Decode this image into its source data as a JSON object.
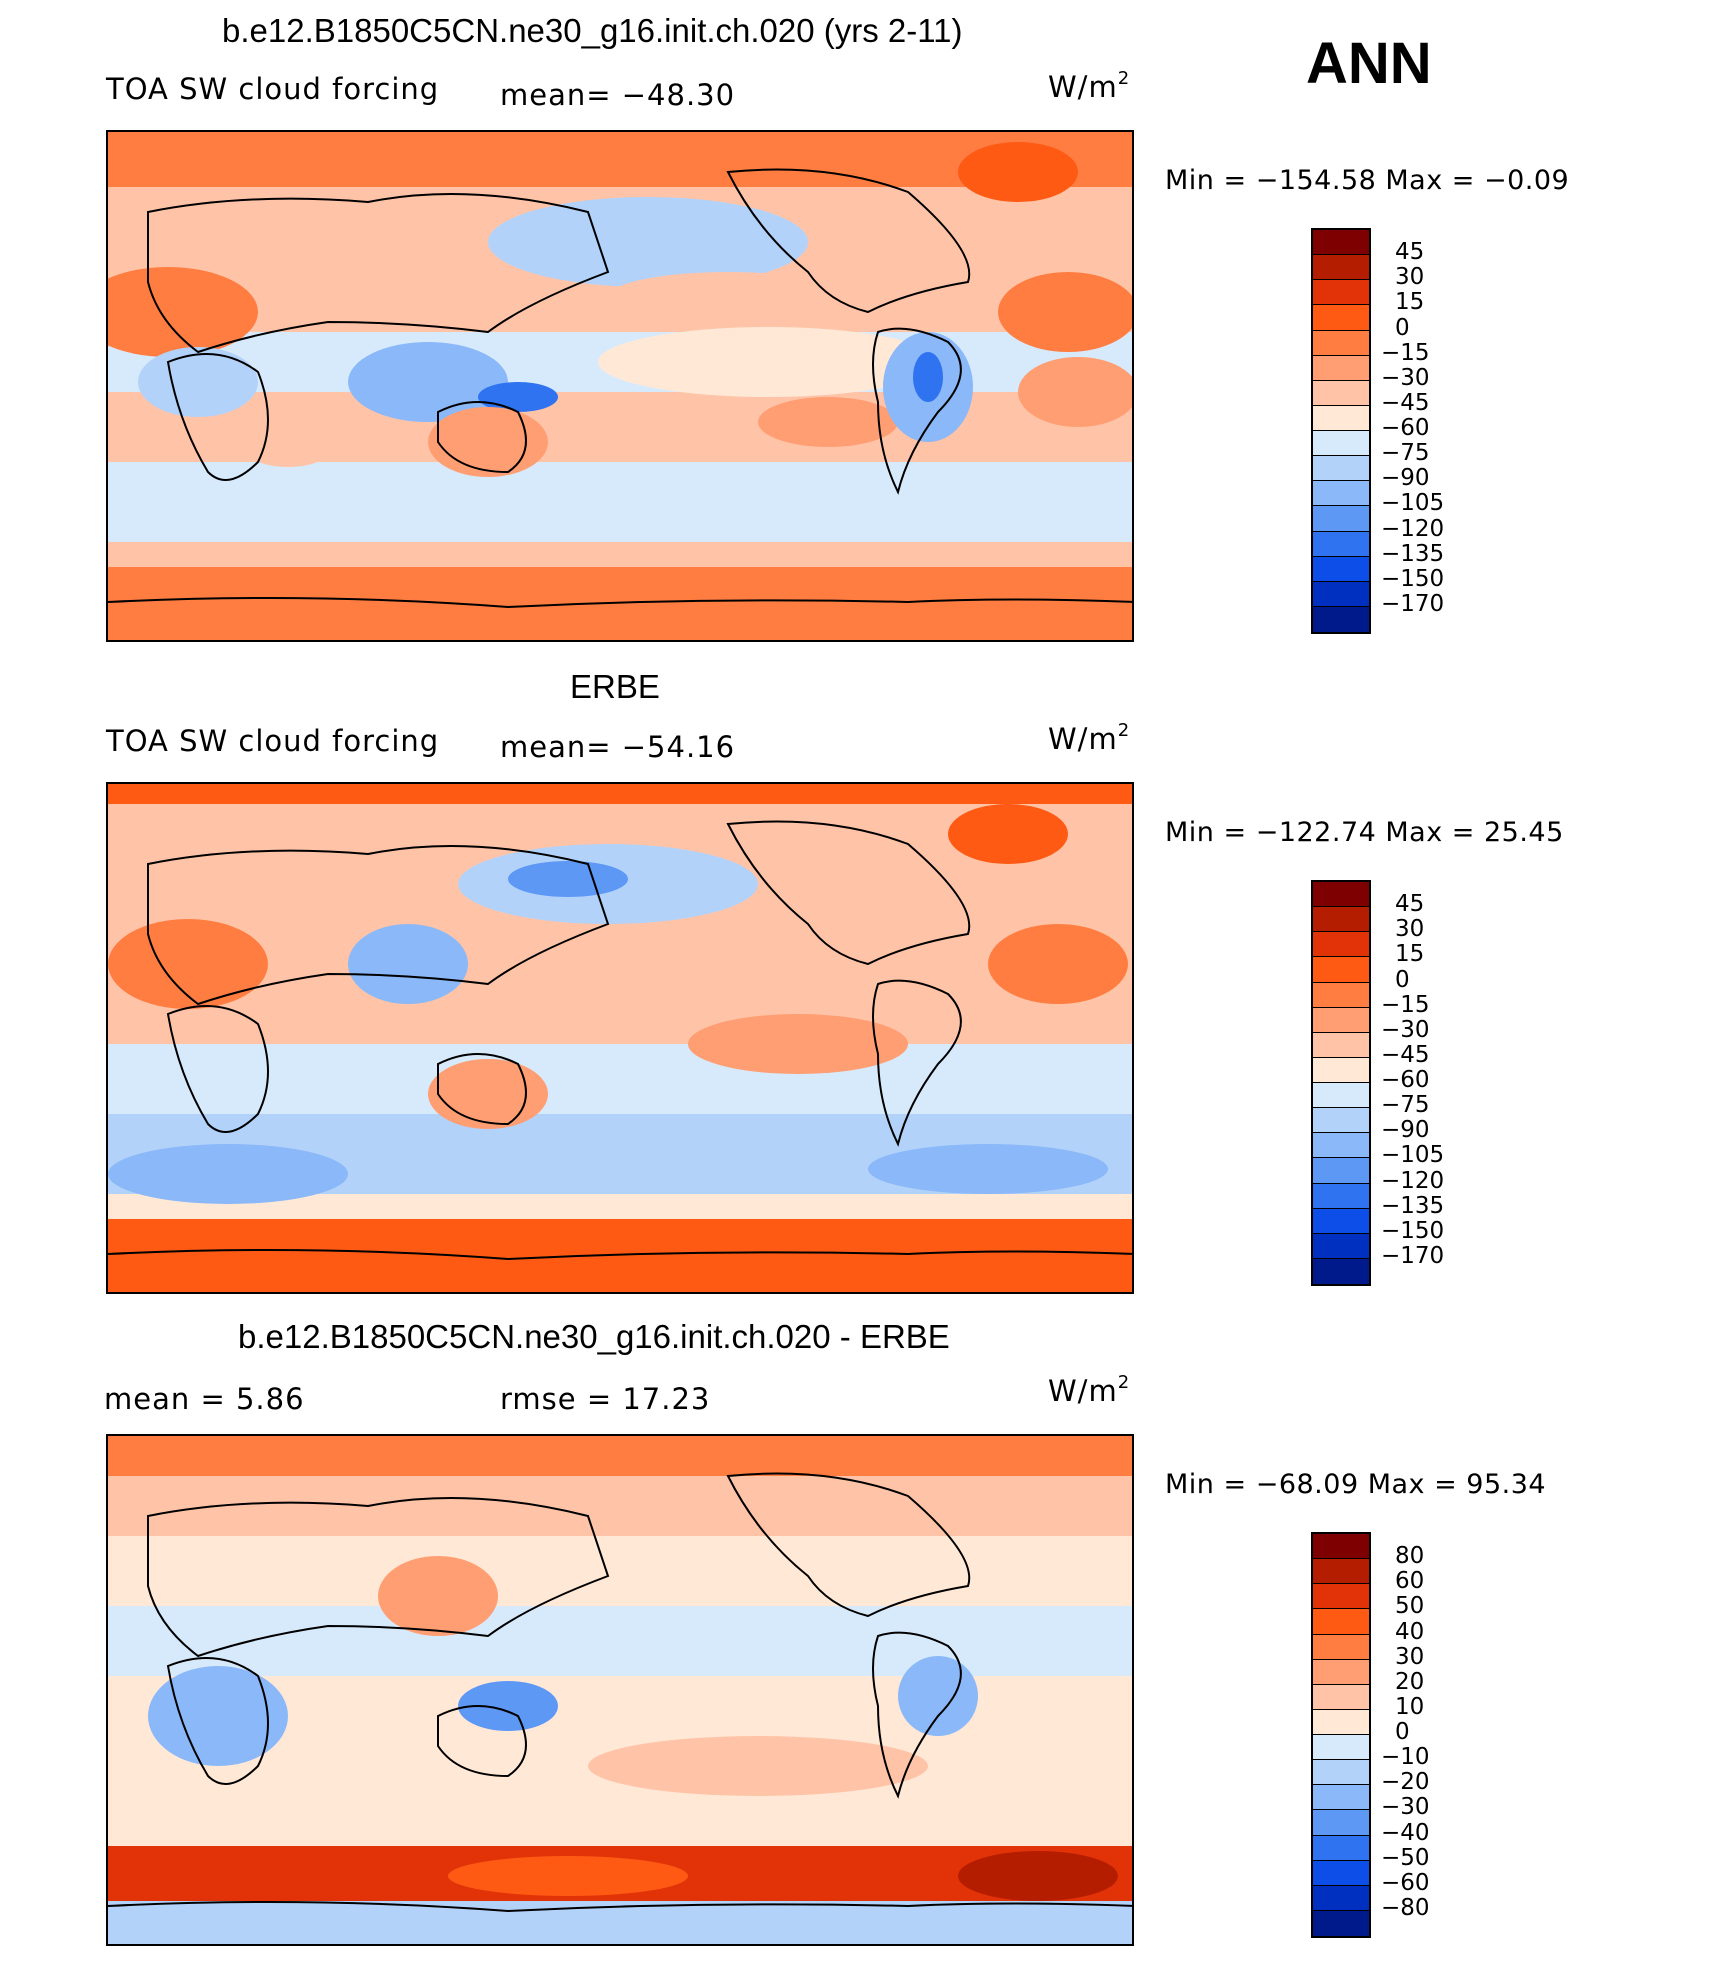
{
  "header": {
    "season": "ANN"
  },
  "units_base": "W/m",
  "units_exp": "2",
  "panels": [
    {
      "title": "b.e12.B1850C5CN.ne30_g16.init.ch.020 (yrs 2-11)",
      "variable": "TOA SW cloud forcing",
      "stat1": "mean=  −48.30",
      "minmax": "Min  =  −154.58  Max  =    −0.09",
      "colorbar": {
        "colors": [
          "#7f0000",
          "#b51d00",
          "#e23308",
          "#ff5a14",
          "#ff7d41",
          "#ff9e73",
          "#ffc4a8",
          "#ffe8d6",
          "#d7eafc",
          "#b2d2fa",
          "#8ab8f8",
          "#5e98f5",
          "#2f73f0",
          "#0d4ee8",
          "#0030c0",
          "#001a8c"
        ],
        "labels": [
          "45",
          "30",
          "15",
          "0",
          "−15",
          "−30",
          "−45",
          "−60",
          "−75",
          "−90",
          "−105",
          "−120",
          "−135",
          "−150",
          "−170"
        ]
      }
    },
    {
      "title": "ERBE",
      "variable": "TOA SW cloud forcing",
      "stat1": "mean=  −54.16",
      "minmax": "Min  =  −122.74  Max  =    25.45",
      "colorbar": {
        "colors": [
          "#7f0000",
          "#b51d00",
          "#e23308",
          "#ff5a14",
          "#ff7d41",
          "#ff9e73",
          "#ffc4a8",
          "#ffe8d6",
          "#d7eafc",
          "#b2d2fa",
          "#8ab8f8",
          "#5e98f5",
          "#2f73f0",
          "#0d4ee8",
          "#0030c0",
          "#001a8c"
        ],
        "labels": [
          "45",
          "30",
          "15",
          "0",
          "−15",
          "−30",
          "−45",
          "−60",
          "−75",
          "−90",
          "−105",
          "−120",
          "−135",
          "−150",
          "−170"
        ]
      }
    },
    {
      "title": "b.e12.B1850C5CN.ne30_g16.init.ch.020 - ERBE",
      "variable": "mean  =      5.86",
      "stat1": "rmse  =    17.23",
      "minmax": "Min  =  −68.09  Max  =    95.34",
      "colorbar": {
        "colors": [
          "#7f0000",
          "#b51d00",
          "#e23308",
          "#ff5a14",
          "#ff7d41",
          "#ff9e73",
          "#ffc4a8",
          "#ffe8d6",
          "#d7eafc",
          "#b2d2fa",
          "#8ab8f8",
          "#5e98f5",
          "#2f73f0",
          "#0d4ee8",
          "#0030c0",
          "#001a8c"
        ],
        "labels": [
          "80",
          "60",
          "50",
          "40",
          "30",
          "20",
          "10",
          "0",
          "−10",
          "−20",
          "−30",
          "−40",
          "−50",
          "−60",
          "−80"
        ]
      }
    }
  ]
}
